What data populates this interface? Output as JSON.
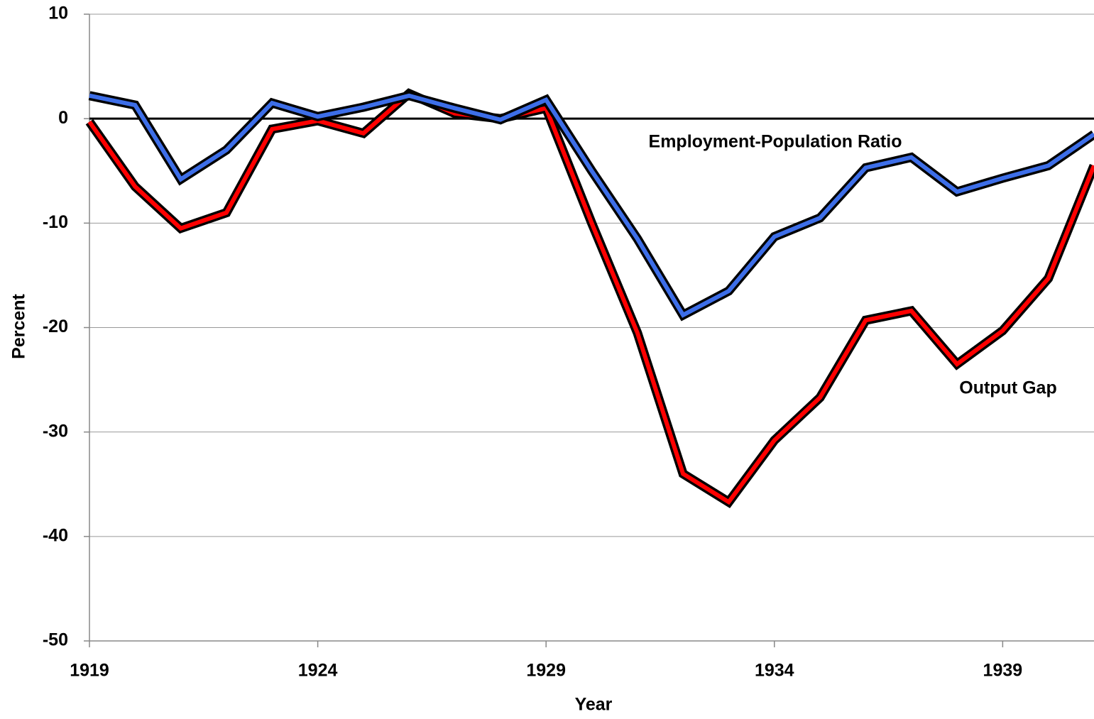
{
  "chart_data": {
    "type": "line",
    "x_label": "Year",
    "y_label": "Percent",
    "x": [
      1919,
      1920,
      1921,
      1922,
      1923,
      1924,
      1925,
      1926,
      1927,
      1928,
      1929,
      1930,
      1931,
      1932,
      1933,
      1934,
      1935,
      1936,
      1937,
      1938,
      1939,
      1940,
      1941
    ],
    "series": [
      {
        "name": "Employment-Population Ratio",
        "color": "#3d6ee8",
        "values": [
          2.2,
          1.3,
          -5.8,
          -3.0,
          1.5,
          0.2,
          1.1,
          2.2,
          1.0,
          -0.1,
          1.8,
          -5.0,
          -11.5,
          -18.8,
          -16.5,
          -11.3,
          -9.5,
          -4.7,
          -3.7,
          -7.0,
          -5.7,
          -4.5,
          -1.5
        ]
      },
      {
        "name": "Output Gap",
        "color": "#ff0000",
        "values": [
          -0.3,
          -6.5,
          -10.5,
          -9.0,
          -1.0,
          -0.2,
          -1.4,
          2.4,
          0.5,
          0.0,
          1.0,
          -10.0,
          -20.5,
          -34.0,
          -36.7,
          -30.8,
          -26.7,
          -19.3,
          -18.4,
          -23.5,
          -20.3,
          -15.3,
          -4.5
        ]
      }
    ],
    "xlim": [
      1919,
      1941
    ],
    "xticks": [
      1919,
      1924,
      1929,
      1934,
      1939
    ],
    "ylim": [
      -50,
      10
    ],
    "yticks": [
      -50,
      -40,
      -30,
      -20,
      -10,
      0,
      10
    ],
    "grid": true
  }
}
